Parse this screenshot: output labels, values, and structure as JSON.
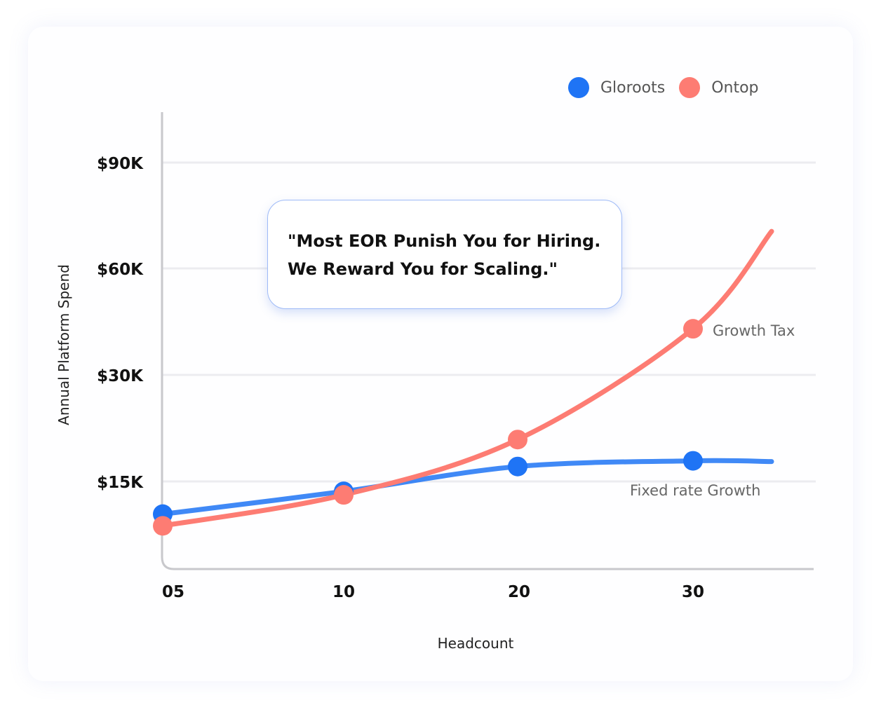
{
  "chart_data": {
    "type": "line",
    "title": "",
    "xlabel": "Headcount",
    "ylabel": "Annual Platform Spend",
    "categories": [
      "05",
      "10",
      "20",
      "30"
    ],
    "y_ticks": [
      "$15K",
      "$30K",
      "$60K",
      "$90K"
    ],
    "y_tick_values": [
      15,
      30,
      60,
      90
    ],
    "grid": true,
    "legend_placement": "top-right",
    "series": [
      {
        "name": "Gloroots",
        "color": "#1f74f5",
        "values": [
          9.4,
          13.3,
          17.1,
          17.9
        ],
        "curve_end": 17.8,
        "annotation": "Fixed rate Growth"
      },
      {
        "name": "Ontop",
        "color": "#fd7c73",
        "values": [
          7.4,
          12.7,
          20.9,
          43.0
        ],
        "curve_end": 70.5,
        "annotation": "Growth Tax"
      }
    ]
  },
  "callout": {
    "line1": "\"Most EOR Punish You for Hiring.",
    "line2": "We Reward You for Scaling.\""
  }
}
